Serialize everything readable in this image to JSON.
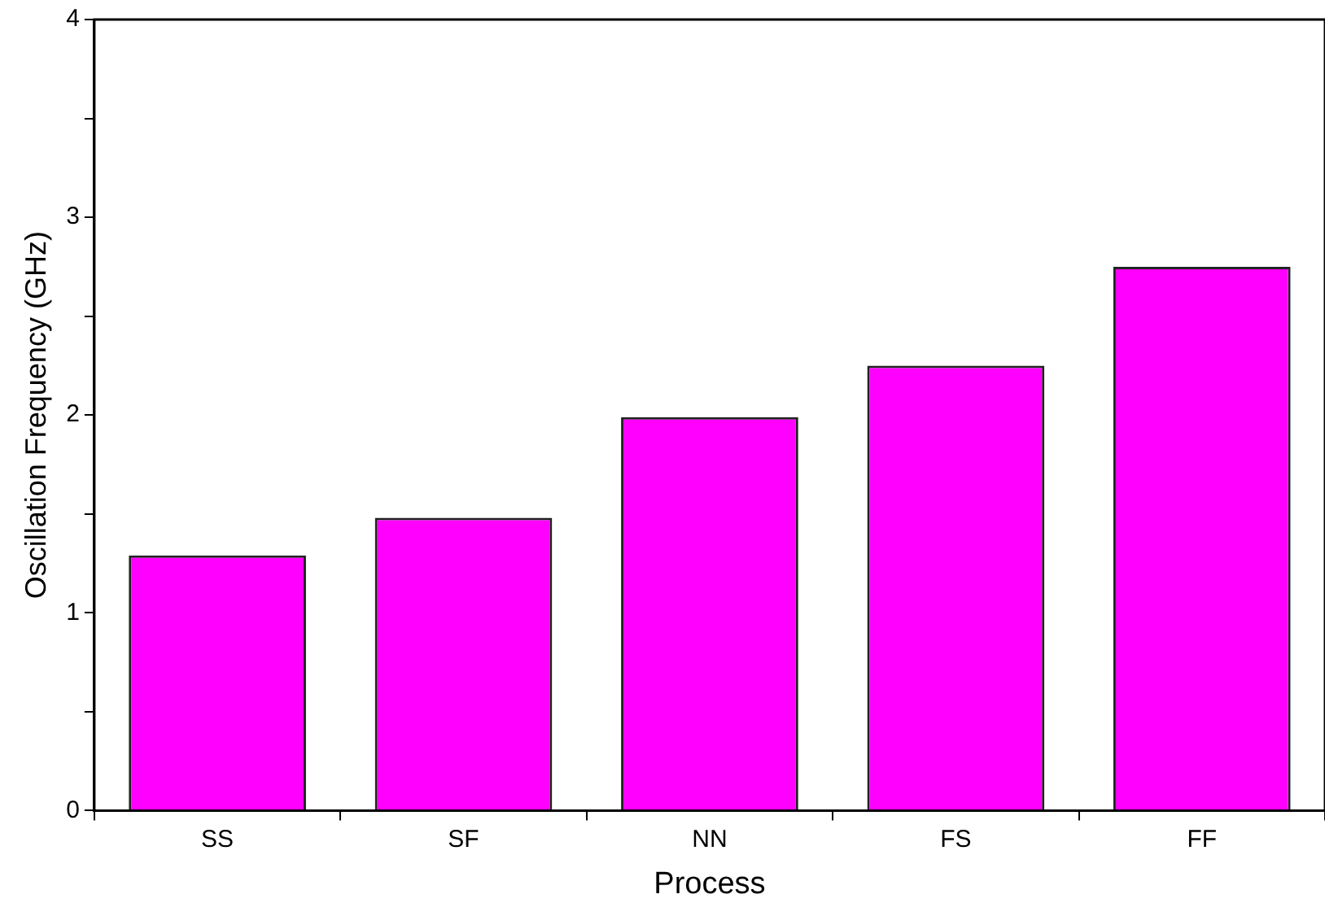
{
  "chart_data": {
    "type": "bar",
    "xlabel": "Process",
    "ylabel": "Oscillation Frequency (GHz)",
    "categories": [
      "SS",
      "SF",
      "NN",
      "FS",
      "FF"
    ],
    "values": [
      1.29,
      1.48,
      1.99,
      2.25,
      2.75
    ],
    "color": "#ff00ff",
    "ylim": [
      0,
      4
    ],
    "yticks": [
      0,
      {
        "value": 0.5,
        "label": null
      },
      1,
      {
        "value": 1.5,
        "label": null
      },
      2,
      {
        "value": 2.5,
        "label": null
      },
      3,
      {
        "value": 3.5,
        "label": null
      },
      4
    ],
    "grid": false,
    "legend": false
  }
}
